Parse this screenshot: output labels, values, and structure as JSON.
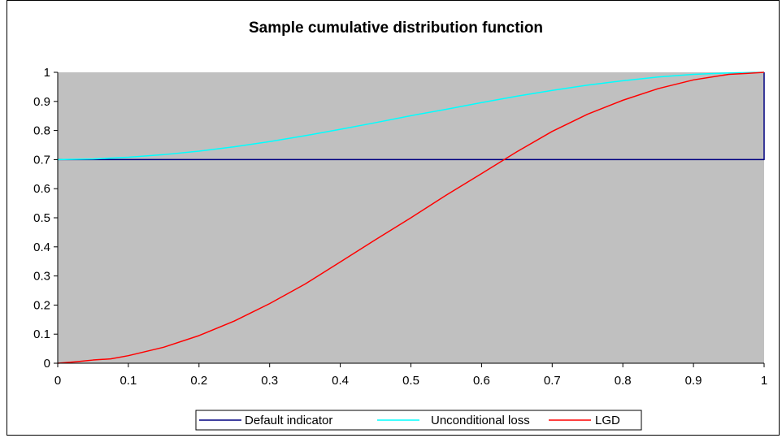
{
  "chart_data": {
    "type": "line",
    "title": "Sample cumulative distribution function",
    "xlabel": "",
    "ylabel": "",
    "xlim": [
      0,
      1
    ],
    "ylim": [
      0,
      1
    ],
    "x_ticks": [
      "0",
      "0.1",
      "0.2",
      "0.3",
      "0.4",
      "0.5",
      "0.6",
      "0.7",
      "0.8",
      "0.9",
      "1"
    ],
    "y_ticks": [
      "0",
      "0.1",
      "0.2",
      "0.3",
      "0.4",
      "0.5",
      "0.6",
      "0.7",
      "0.8",
      "0.9",
      "1"
    ],
    "grid": false,
    "plot_background": "#c0c0c0",
    "legend_position": "bottom",
    "series": [
      {
        "name": "Default indicator",
        "color": "#000080",
        "points": [
          [
            0,
            0.7
          ],
          [
            1,
            0.7
          ],
          [
            1,
            1.0
          ]
        ]
      },
      {
        "name": "Unconditional loss",
        "color": "#00ffff",
        "points": [
          [
            0,
            0.7
          ],
          [
            0.05,
            0.702
          ],
          [
            0.1,
            0.708
          ],
          [
            0.15,
            0.717
          ],
          [
            0.2,
            0.729
          ],
          [
            0.25,
            0.744
          ],
          [
            0.3,
            0.762
          ],
          [
            0.35,
            0.782
          ],
          [
            0.4,
            0.804
          ],
          [
            0.45,
            0.827
          ],
          [
            0.5,
            0.851
          ],
          [
            0.55,
            0.873
          ],
          [
            0.6,
            0.896
          ],
          [
            0.65,
            0.918
          ],
          [
            0.7,
            0.938
          ],
          [
            0.75,
            0.956
          ],
          [
            0.8,
            0.971
          ],
          [
            0.85,
            0.984
          ],
          [
            0.9,
            0.993
          ],
          [
            0.95,
            0.998
          ],
          [
            1.0,
            1.0
          ]
        ]
      },
      {
        "name": "LGD",
        "color": "#ff0000",
        "points": [
          [
            0,
            0.0
          ],
          [
            0.025,
            0.005
          ],
          [
            0.05,
            0.011
          ],
          [
            0.075,
            0.015
          ],
          [
            0.1,
            0.026
          ],
          [
            0.15,
            0.055
          ],
          [
            0.2,
            0.095
          ],
          [
            0.25,
            0.145
          ],
          [
            0.3,
            0.205
          ],
          [
            0.35,
            0.272
          ],
          [
            0.4,
            0.348
          ],
          [
            0.45,
            0.425
          ],
          [
            0.5,
            0.5
          ],
          [
            0.55,
            0.578
          ],
          [
            0.6,
            0.652
          ],
          [
            0.65,
            0.727
          ],
          [
            0.7,
            0.797
          ],
          [
            0.75,
            0.856
          ],
          [
            0.8,
            0.904
          ],
          [
            0.85,
            0.944
          ],
          [
            0.9,
            0.974
          ],
          [
            0.95,
            0.993
          ],
          [
            0.975,
            0.996
          ],
          [
            1.0,
            1.0
          ]
        ]
      }
    ]
  }
}
